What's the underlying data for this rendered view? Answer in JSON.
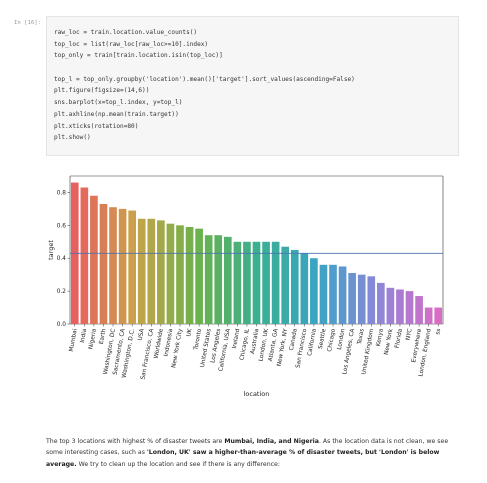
{
  "cell": {
    "prompt": "In [16]:",
    "code_lines": [
      "raw_loc = train.location.value_counts()",
      "top_loc = list(raw_loc[raw_loc>=10].index)",
      "top_only = train[train.location.isin(top_loc)]",
      "",
      "top_l = top_only.groupby('location').mean()['target'].sort_values(ascending=False)",
      "plt.figure(figsize=(14,6))",
      "sns.barplot(x=top_l.index, y=top_l)",
      "plt.axhline(np.mean(train.target))",
      "plt.xticks(rotation=80)",
      "plt.show()"
    ]
  },
  "chart_data": {
    "type": "bar",
    "xlabel": "location",
    "ylabel": "target",
    "ylim": [
      0,
      0.9
    ],
    "yticks": [
      "0.0",
      "0.2",
      "0.4",
      "0.6",
      "0.8"
    ],
    "grid": false,
    "categories": [
      "Mumbai",
      "India",
      "Nigeria",
      "Earth",
      "Washington, DC",
      "Sacramento, CA",
      "Washington, D.C.",
      "USA",
      "San Francisco, CA",
      "Worldwide",
      "Indonesia",
      "New York City",
      "UK",
      "Toronto",
      "United States",
      "Los Angeles",
      "California, USA",
      "Ireland",
      "Chicago, IL",
      "Australia",
      "London, UK",
      "Atlanta, GA",
      "New York, NY",
      "Canada",
      "San Francisco",
      "California",
      "Seattle",
      "Chicago",
      "London",
      "Los Angeles, CA",
      "Texas",
      "United Kingdom",
      "Kenya",
      "New York",
      "Florida",
      "NYC",
      "Everywhere",
      "London, England",
      "ss"
    ],
    "values": [
      0.86,
      0.83,
      0.78,
      0.73,
      0.71,
      0.7,
      0.69,
      0.64,
      0.64,
      0.63,
      0.61,
      0.6,
      0.59,
      0.58,
      0.54,
      0.54,
      0.53,
      0.5,
      0.5,
      0.5,
      0.5,
      0.5,
      0.47,
      0.45,
      0.43,
      0.4,
      0.36,
      0.36,
      0.35,
      0.31,
      0.3,
      0.29,
      0.25,
      0.22,
      0.21,
      0.2,
      0.17,
      0.1,
      0.1
    ],
    "axhline": 0.43,
    "axhline_color": "#4c72b0",
    "palette_endpoints": [
      "#e85f5f",
      "#c9a34a",
      "#6db24a",
      "#3bb08f",
      "#3aa4c4",
      "#8d86d9",
      "#d96cc4"
    ]
  },
  "markdown": {
    "p1": "The top 3 locations with highest % of disaster tweets are ",
    "p1_bold": "Mumbai, India, and Nigeria",
    "p2": ". As the location data is not clean, we see some interesting cases, such as ",
    "p2_bold": "'London, UK' saw a higher-than-average % of disaster tweets, but 'London' is below average.",
    "p3": " We try to clean up the location and see if there is any difference:"
  }
}
